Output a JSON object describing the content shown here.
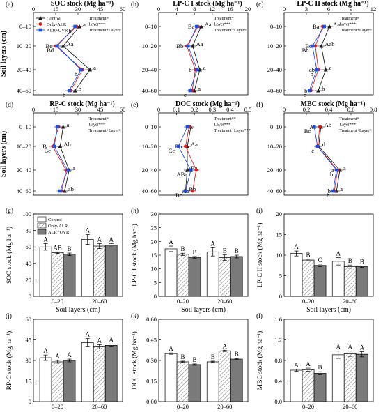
{
  "chart_data": [
    {
      "id": "a",
      "type": "line",
      "panel_label": "(a)",
      "xlabel": "SOC stock (Mg ha⁻¹)",
      "ylabel": "Soil layers (cm)",
      "xlim": [
        0,
        60
      ],
      "xticks": [
        "0",
        "15",
        "30",
        "45",
        "60"
      ],
      "yticks": [
        "0–10",
        "10–20",
        "20–40",
        "40–60"
      ],
      "annotation_lines": [
        "Treatmentⁿˢ",
        "Layer***",
        "Treatment+Layerⁿˢ"
      ],
      "legend": [
        "Control",
        "Only-ALR",
        "ALR+UVR"
      ],
      "series": [
        {
          "name": "Control",
          "values": [
            31,
            20,
            38,
            28
          ],
          "labels": [
            "a",
            "Aa",
            "a",
            "b"
          ]
        },
        {
          "name": "Only-ALR",
          "values": [
            29,
            15,
            33,
            25
          ],
          "labels": [
            "",
            "Be",
            "",
            ""
          ]
        },
        {
          "name": "ALR+UVR",
          "values": [
            28,
            16,
            32,
            24
          ],
          "labels": [
            "b",
            "Bd",
            "b",
            "b"
          ]
        }
      ]
    },
    {
      "id": "b",
      "type": "line",
      "panel_label": "(b)",
      "xlabel": "LP-C I stock (Mg ha⁻¹)",
      "ylabel": "",
      "xlim": [
        0,
        20
      ],
      "xticks": [
        "0",
        "4",
        "8",
        "12",
        "16",
        "20"
      ],
      "yticks": [
        "0–10",
        "10–20",
        "20–40",
        "40–60"
      ],
      "annotation_lines": [
        "Treatment*",
        "Layer***",
        "Treatment+Layerⁿˢ"
      ],
      "series": [
        {
          "name": "Control",
          "values": [
            9.5,
            7.6,
            9.2,
            8.0
          ],
          "labels": [
            "Aa",
            "Aa",
            "a",
            "a"
          ]
        },
        {
          "name": "Only-ALR",
          "values": [
            8.8,
            6.3,
            8.2,
            7.5
          ],
          "labels": [
            "Ba",
            "Bb",
            "b",
            ""
          ]
        },
        {
          "name": "ALR+UVR",
          "values": [
            8.5,
            6.6,
            8.6,
            7.0
          ],
          "labels": [
            "",
            "",
            "",
            "c"
          ]
        }
      ]
    },
    {
      "id": "c",
      "type": "line",
      "panel_label": "(c)",
      "xlabel": "LP-C II stock (Mg ha⁻¹)",
      "ylabel": "",
      "xlim": [
        0,
        12
      ],
      "xticks": [
        "0",
        "3",
        "6",
        "9",
        "12"
      ],
      "yticks": [
        "0–10",
        "10–20",
        "20–40",
        "40–60"
      ],
      "annotation_lines": [
        "Treatmentⁿˢ",
        "Layer***",
        "Treatment+Layerⁿˢ"
      ],
      "series": [
        {
          "name": "Control",
          "values": [
            6.1,
            5.0,
            5.6,
            4.6
          ],
          "labels": [
            "Aa",
            "Aab",
            "a",
            "b"
          ]
        },
        {
          "name": "Only-ALR",
          "values": [
            5.2,
            4.2,
            4.6,
            3.6
          ],
          "labels": [
            "Ba",
            "Bc",
            "ab",
            "b"
          ]
        },
        {
          "name": "ALR+UVR",
          "values": [
            5.4,
            3.8,
            4.4,
            3.4
          ],
          "labels": [
            "",
            "Bb",
            "b",
            "c"
          ]
        }
      ]
    },
    {
      "id": "d",
      "type": "line",
      "panel_label": "(d)",
      "xlabel": "RP-C stock (Mg ha⁻¹)",
      "ylabel": "Soil layers (cm)",
      "xlim": [
        0,
        60
      ],
      "xticks": [
        "0",
        "15",
        "30",
        "45",
        "60"
      ],
      "yticks": [
        "0–10",
        "10–20",
        "20–40",
        "40–60"
      ],
      "annotation_lines": [
        "Treatmentⁿˢ",
        "Layer***",
        "Treatment+Layerⁿˢ"
      ],
      "series": [
        {
          "name": "Control",
          "values": [
            20,
            18,
            24,
            21
          ],
          "labels": [
            "a",
            "Ab",
            "a",
            "ab"
          ]
        },
        {
          "name": "Only-ALR",
          "values": [
            17,
            13,
            22,
            19
          ],
          "labels": [
            "",
            "Bc",
            "",
            ""
          ]
        },
        {
          "name": "ALR+UVR",
          "values": [
            16,
            14,
            23,
            18
          ],
          "labels": [
            "",
            "Bc",
            "",
            ""
          ]
        }
      ]
    },
    {
      "id": "e",
      "type": "line",
      "panel_label": "(e)",
      "xlabel": "DOC stock (Mg ha⁻¹)",
      "ylabel": "",
      "xlim": [
        0,
        0.5
      ],
      "xticks": [
        "0",
        "0.1",
        "0.2",
        "0.3",
        "0.4",
        "0.5"
      ],
      "yticks": [
        "0–10",
        "10–20",
        "20–40",
        "40–60"
      ],
      "annotation_lines": [
        "Treatment**",
        "Layer***",
        "Treatment+Layer***"
      ],
      "series": [
        {
          "name": "Control",
          "values": [
            0.18,
            0.16,
            0.16,
            0.15
          ],
          "labels": [
            "",
            "Aa",
            "Ba",
            "Bb"
          ]
        },
        {
          "name": "Only-ALR",
          "values": [
            0.17,
            0.15,
            0.21,
            0.19
          ],
          "labels": [
            "",
            "Bb",
            "Aa",
            "Ab"
          ]
        },
        {
          "name": "ALR+UVR",
          "values": [
            0.16,
            0.11,
            0.18,
            0.15
          ],
          "labels": [
            "",
            "Cc",
            "ABa",
            "Bc"
          ]
        }
      ]
    },
    {
      "id": "f",
      "type": "line",
      "panel_label": "(f)",
      "xlabel": "MBC stock (Mg ha⁻¹)",
      "ylabel": "",
      "xlim": [
        0,
        0.8
      ],
      "xticks": [
        "0",
        "0.2",
        "0.4",
        "0.6",
        "0.8"
      ],
      "yticks": [
        "0–10",
        "10–20",
        "20–40",
        "40–60"
      ],
      "annotation_lines": [
        "Treatmentⁿˢ",
        "Layer***",
        "Treatment+Layerⁿˢ"
      ],
      "series": [
        {
          "name": "Control",
          "values": [
            0.33,
            0.31,
            0.5,
            0.47
          ],
          "labels": [
            "Ab",
            "d",
            "a",
            "a"
          ]
        },
        {
          "name": "Only-ALR",
          "values": [
            0.32,
            0.3,
            0.48,
            0.45
          ],
          "labels": [
            "Ac",
            "",
            "a",
            "b"
          ]
        },
        {
          "name": "ALR+UVR",
          "values": [
            0.27,
            0.3,
            0.47,
            0.44
          ],
          "labels": [
            "Bc",
            "c",
            "b",
            "b"
          ]
        }
      ]
    },
    {
      "id": "g",
      "type": "bar",
      "panel_label": "(g)",
      "ylabel": "SOC stock (Mg ha⁻¹)",
      "xlabel": "Soil layers (cm)",
      "categories": [
        "0–20",
        "20–60"
      ],
      "ylim": [
        0,
        100
      ],
      "yticks": [
        "0",
        "20",
        "40",
        "60",
        "80",
        "100"
      ],
      "legend": [
        "Control",
        "Only-ALR",
        "ALR+UVR"
      ],
      "series": [
        {
          "name": "Control",
          "values": [
            60,
            69
          ],
          "errors": [
            4,
            6
          ],
          "labels": [
            "A",
            "A"
          ]
        },
        {
          "name": "Only-ALR",
          "values": [
            53,
            61
          ],
          "errors": [
            1,
            3
          ],
          "labels": [
            "AB",
            "A"
          ]
        },
        {
          "name": "ALR+UVR",
          "values": [
            51,
            62
          ],
          "errors": [
            1.5,
            2
          ],
          "labels": [
            "B",
            "A"
          ]
        }
      ]
    },
    {
      "id": "h",
      "type": "bar",
      "panel_label": "(h)",
      "ylabel": "LP-C I stock (Mg ha⁻¹)",
      "xlabel": "Soil layers (cm)",
      "categories": [
        "0–20",
        "20–60"
      ],
      "ylim": [
        0,
        30
      ],
      "yticks": [
        "0",
        "5",
        "10",
        "15",
        "20",
        "25",
        "30"
      ],
      "series": [
        {
          "name": "Control",
          "values": [
            17.3,
            16.2
          ],
          "errors": [
            1.0,
            1.5
          ],
          "labels": [
            "A",
            "A"
          ]
        },
        {
          "name": "Only-ALR",
          "values": [
            15.3,
            14.1
          ],
          "errors": [
            0.4,
            1.0
          ],
          "labels": [
            "B",
            "B"
          ]
        },
        {
          "name": "ALR+UVR",
          "values": [
            14.2,
            14.5
          ],
          "errors": [
            0.3,
            0.5
          ],
          "labels": [
            "B",
            "B"
          ]
        }
      ]
    },
    {
      "id": "i",
      "type": "bar",
      "panel_label": "(i)",
      "ylabel": "LP-C II stock (Mg ha⁻¹)",
      "xlabel": "Soil layers (cm)",
      "categories": [
        "0–20",
        "20–60"
      ],
      "ylim": [
        0,
        20
      ],
      "yticks": [
        "0",
        "5",
        "10",
        "15",
        "20"
      ],
      "series": [
        {
          "name": "Control",
          "values": [
            10.4,
            8.5
          ],
          "errors": [
            0.6,
            0.9
          ],
          "labels": [
            "A",
            "A"
          ]
        },
        {
          "name": "Only-ALR",
          "values": [
            8.8,
            7.2
          ],
          "errors": [
            0.2,
            0.4
          ],
          "labels": [
            "B",
            "B"
          ]
        },
        {
          "name": "ALR+UVR",
          "values": [
            7.5,
            7.2
          ],
          "errors": [
            0.3,
            0.2
          ],
          "labels": [
            "C",
            "B"
          ]
        }
      ]
    },
    {
      "id": "j",
      "type": "bar",
      "panel_label": "(j)",
      "ylabel": "RP-C stock (Mg ha⁻¹)",
      "xlabel": "Soil layers (cm)",
      "categories": [
        "0–20",
        "20–60"
      ],
      "ylim": [
        0,
        60
      ],
      "yticks": [
        "0",
        "15",
        "30",
        "45",
        "60"
      ],
      "series": [
        {
          "name": "Control",
          "values": [
            32,
            43
          ],
          "errors": [
            2,
            3
          ],
          "labels": [
            "A",
            "A"
          ]
        },
        {
          "name": "Only-ALR",
          "values": [
            29,
            40
          ],
          "errors": [
            1,
            1.5
          ],
          "labels": [
            "A",
            "A"
          ]
        },
        {
          "name": "ALR+UVR",
          "values": [
            30,
            41
          ],
          "errors": [
            1,
            1
          ],
          "labels": [
            "A",
            "A"
          ]
        }
      ]
    },
    {
      "id": "k",
      "type": "bar",
      "panel_label": "(k)",
      "ylabel": "DOC stock (Mg ha⁻¹)",
      "xlabel": "Soil layers (cm)",
      "categories": [
        "0–20",
        "20–60"
      ],
      "ylim": [
        0,
        0.6
      ],
      "yticks": [
        "0.00",
        "0.15",
        "0.30",
        "0.45",
        "0.60"
      ],
      "series": [
        {
          "name": "Control",
          "values": [
            0.35,
            0.29
          ],
          "errors": [
            0.005,
            0.005
          ],
          "labels": [
            "A",
            "B"
          ]
        },
        {
          "name": "Only-ALR",
          "values": [
            0.29,
            0.37
          ],
          "errors": [
            0.005,
            0.005
          ],
          "labels": [
            "B",
            "A"
          ]
        },
        {
          "name": "ALR+UVR",
          "values": [
            0.27,
            0.31
          ],
          "errors": [
            0.005,
            0.005
          ],
          "labels": [
            "B",
            "B"
          ]
        }
      ]
    },
    {
      "id": "l",
      "type": "bar",
      "panel_label": "(l)",
      "ylabel": "MBC stock (Mg ha⁻¹)",
      "xlabel": "Soil layers (cm)",
      "categories": [
        "0–20",
        "20–60"
      ],
      "ylim": [
        0,
        1.6
      ],
      "yticks": [
        "0.0",
        "0.4",
        "0.8",
        "1.2",
        "1.6"
      ],
      "series": [
        {
          "name": "Control",
          "values": [
            0.61,
            0.91
          ],
          "errors": [
            0.02,
            0.07
          ],
          "labels": [
            "A",
            "A"
          ]
        },
        {
          "name": "Only-ALR",
          "values": [
            0.62,
            0.93
          ],
          "errors": [
            0.03,
            0.05
          ],
          "labels": [
            "A",
            "A"
          ]
        },
        {
          "name": "ALR+UVR",
          "values": [
            0.55,
            0.92
          ],
          "errors": [
            0.03,
            0.05
          ],
          "labels": [
            "B",
            "A"
          ]
        }
      ]
    }
  ]
}
